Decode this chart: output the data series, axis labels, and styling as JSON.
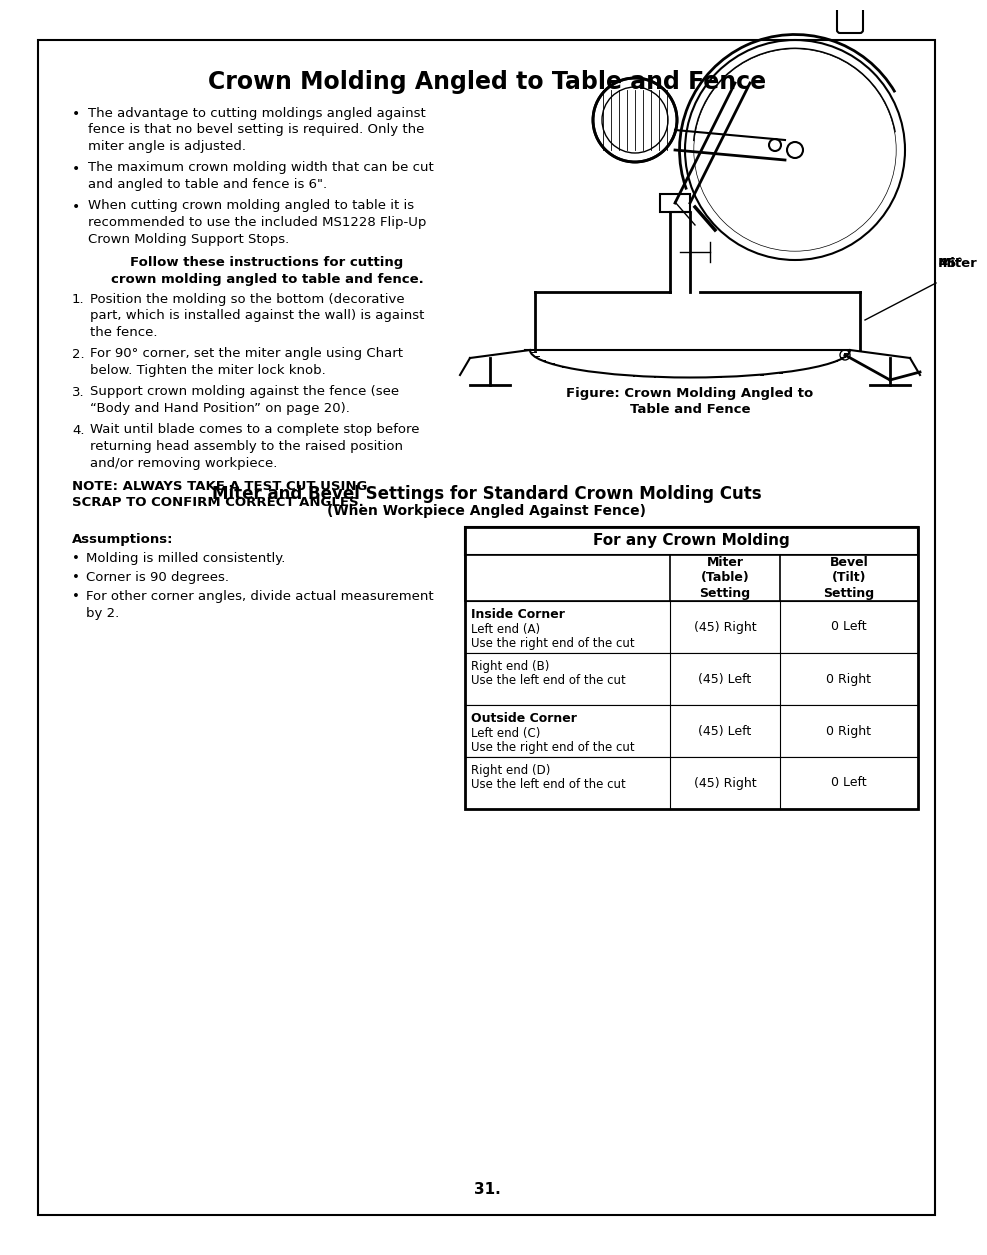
{
  "title": "Crown Molding Angled to Table and Fence",
  "page_bg": "#ffffff",
  "border_color": "#000000",
  "page_number": "31.",
  "bullet_points": [
    "The advantage to cutting moldings angled against\nfence is that no bevel setting is required. Only the\nmiter angle is adjusted.",
    "The maximum crown molding width that can be cut\nand angled to table and fence is 6\".",
    "When cutting crown molding angled to table it is\nrecommended to use the included MS1228 Flip-Up\nCrown Molding Support Stops."
  ],
  "bold_instruction_title": "Follow these instructions for cutting\ncrown molding angled to table and fence.",
  "numbered_steps": [
    "Position the molding so the bottom (decorative\npart, which is installed against the wall) is against\nthe fence.",
    "For 90° corner, set the miter angle using Chart\nbelow. Tighten the miter lock knob.",
    "Support crown molding against the fence (see\n“Body and Hand Position” on page 20).",
    "Wait until blade comes to a complete stop before\nreturning head assembly to the raised position\nand/or removing workpiece."
  ],
  "note_line1": "NOTE: ALWAYS TAKE A TEST CUT USING",
  "note_line2": "SCRAP TO CONFIRM CORRECT ANGLES.",
  "figure_caption_line1": "Figure: Crown Molding Angled to",
  "figure_caption_line2": "Table and Fence",
  "miter_label_line1": "45°",
  "miter_label_line2": "Miter",
  "table_section_title": "Miter and Bevel Settings for Standard Crown Molding Cuts",
  "table_section_subtitle": "(When Workpiece Angled Against Fence)",
  "assumptions_title": "Assumptions:",
  "assumptions": [
    "Molding is milled consistently.",
    "Corner is 90 degrees.",
    "For other corner angles, divide actual measurement\nby 2."
  ],
  "table_header_main": "For any Crown Molding",
  "table_col2_header": "Miter\n(Table)\nSetting",
  "table_col3_header": "Bevel\n(Tilt)\nSetting",
  "table_rows": [
    {
      "section": "Inside Corner",
      "label1": "Left end (A)",
      "label2": "Use the right end of the cut",
      "miter": "(45) Right",
      "bevel": "0 Left",
      "bold_section": true
    },
    {
      "section": "",
      "label1": "Right end (B)",
      "label2": "Use the left end of the cut",
      "miter": "(45) Left",
      "bevel": "0 Right",
      "bold_section": false
    },
    {
      "section": "Outside Corner",
      "label1": "Left end (C)",
      "label2": "Use the right end of the cut",
      "miter": "(45) Left",
      "bevel": "0 Right",
      "bold_section": true
    },
    {
      "section": "",
      "label1": "Right end (D)",
      "label2": "Use the left end of the cut",
      "miter": "(45) Right",
      "bevel": "0 Left",
      "bold_section": false
    }
  ]
}
